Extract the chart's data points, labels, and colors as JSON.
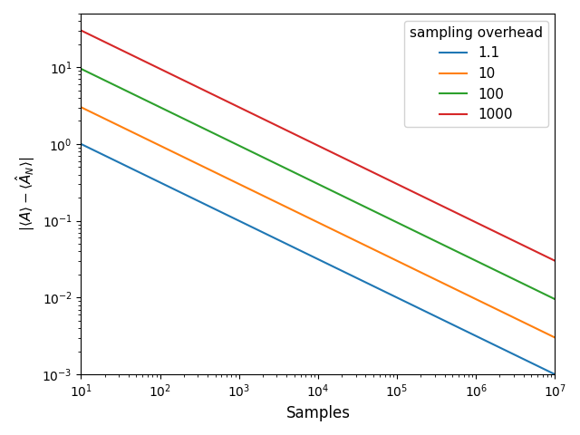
{
  "title": "",
  "xlabel": "Samples",
  "ylabel": "$|\\langle A\\rangle - \\langle\\hat{A}_N\\rangle|$",
  "legend_title": "sampling overhead",
  "series": [
    {
      "label": "1.1",
      "overhead": 1.1,
      "color": "#1f77b4"
    },
    {
      "label": "10",
      "overhead": 10.0,
      "color": "#ff7f0e"
    },
    {
      "label": "100",
      "overhead": 100.0,
      "color": "#2ca02c"
    },
    {
      "label": "1000",
      "overhead": 1000.0,
      "color": "#d62728"
    }
  ],
  "x_start": 10,
  "x_end": 10000000.0,
  "n_points": 300,
  "base_scale": 1.0,
  "xlim": [
    10,
    10000000.0
  ],
  "ylim": [
    0.001,
    50
  ],
  "figsize": [
    6.4,
    4.8
  ],
  "dpi": 100
}
